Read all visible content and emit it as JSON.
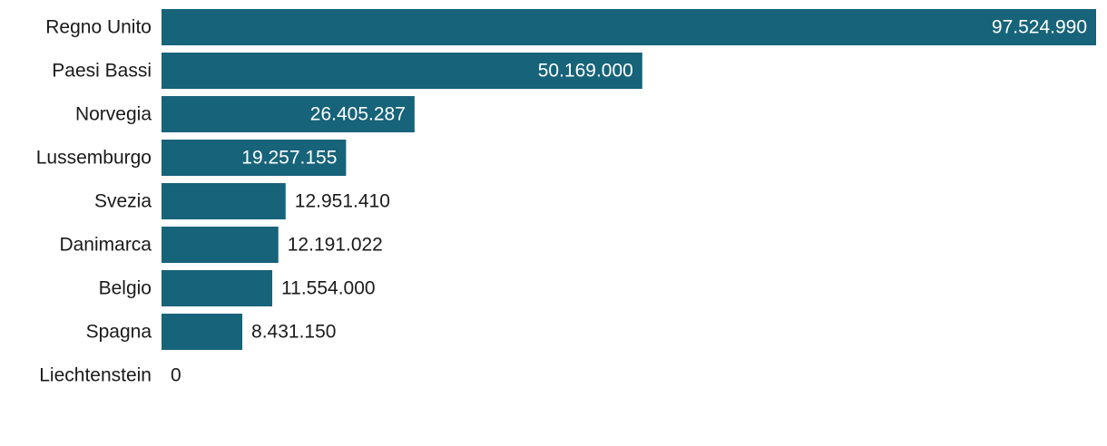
{
  "chart_data": {
    "type": "bar",
    "orientation": "horizontal",
    "categories": [
      "Regno Unito",
      "Paesi Bassi",
      "Norvegia",
      "Lussemburgo",
      "Svezia",
      "Danimarca",
      "Belgio",
      "Spagna",
      "Liechtenstein"
    ],
    "values": [
      97524990,
      50169000,
      26405287,
      19257155,
      12951410,
      12191022,
      11554000,
      8431150,
      0
    ],
    "value_labels": [
      "97.524.990",
      "50.169.000",
      "26.405.287",
      "19.257.155",
      "12.951.410",
      "12.191.022",
      "11.554.000",
      "8.431.150",
      "0"
    ],
    "xlim": [
      0,
      97524990
    ],
    "grid": false,
    "legend": "none",
    "colors": {
      "bar": "#17637a",
      "label_inside": "#ffffff",
      "label_outside": "#1a1a1a"
    }
  }
}
